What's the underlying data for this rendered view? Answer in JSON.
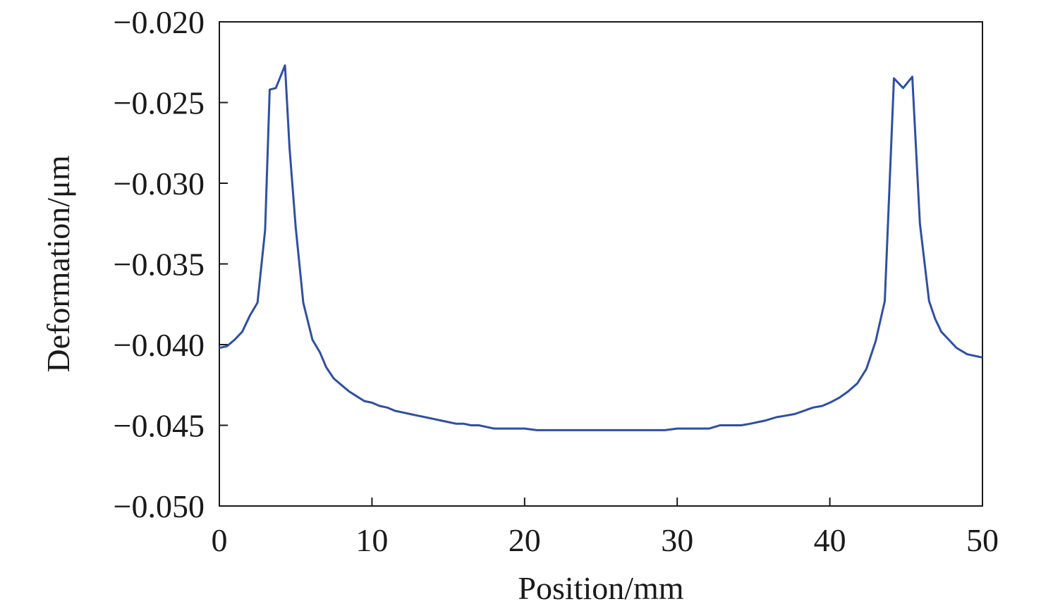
{
  "chart_data": {
    "type": "line",
    "title": "",
    "xlabel": "Position/mm",
    "ylabel": "Deformation/μm",
    "xlim": [
      0,
      50
    ],
    "ylim": [
      -0.05,
      -0.02
    ],
    "xticks": [
      0,
      10,
      20,
      30,
      40,
      50
    ],
    "xtick_labels": [
      "0",
      "10",
      "20",
      "30",
      "40",
      "50"
    ],
    "yticks": [
      -0.05,
      -0.045,
      -0.04,
      -0.035,
      -0.03,
      -0.025,
      -0.02
    ],
    "ytick_labels": [
      "−0.050",
      "−0.045",
      "−0.040",
      "−0.035",
      "−0.030",
      "−0.025",
      "−0.020"
    ],
    "grid": false,
    "legend": "none",
    "series": [
      {
        "color": "#2e4fa3",
        "x": [
          0,
          0.5,
          1,
          1.5,
          2,
          2.5,
          3,
          3.3,
          3.7,
          4.3,
          4.6,
          5,
          5.5,
          6.1,
          6.6,
          7,
          7.5,
          8,
          8.5,
          9,
          9.5,
          10,
          10.5,
          11,
          11.5,
          12,
          12.5,
          13,
          13.5,
          14,
          14.5,
          15,
          15.5,
          16,
          16.5,
          17,
          17.5,
          18,
          19,
          20,
          20.8,
          22,
          23,
          24,
          25,
          26,
          27,
          28,
          29.2,
          30,
          31,
          32.1,
          32.8,
          33.5,
          34.2,
          34.8,
          35.3,
          35.8,
          36.5,
          37.1,
          37.7,
          38.3,
          38.9,
          39.5,
          40,
          40.6,
          41.2,
          41.8,
          42.4,
          43,
          43.6,
          44.2,
          44.8,
          45.4,
          45.9,
          46.5,
          46.9,
          47.3,
          47.8,
          48.3,
          49,
          50
        ],
        "values": [
          -0.0402,
          -0.0401,
          -0.0397,
          -0.0392,
          -0.0382,
          -0.0374,
          -0.0329,
          -0.0242,
          -0.0241,
          -0.0227,
          -0.0278,
          -0.0327,
          -0.0374,
          -0.0397,
          -0.0405,
          -0.0414,
          -0.0421,
          -0.0425,
          -0.0429,
          -0.0432,
          -0.0435,
          -0.0436,
          -0.0438,
          -0.0439,
          -0.0441,
          -0.0442,
          -0.0443,
          -0.0444,
          -0.0445,
          -0.0446,
          -0.0447,
          -0.0448,
          -0.0449,
          -0.0449,
          -0.045,
          -0.045,
          -0.0451,
          -0.0452,
          -0.0452,
          -0.0452,
          -0.0453,
          -0.0453,
          -0.0453,
          -0.0453,
          -0.0453,
          -0.0453,
          -0.0453,
          -0.0453,
          -0.0453,
          -0.0452,
          -0.0452,
          -0.0452,
          -0.045,
          -0.045,
          -0.045,
          -0.0449,
          -0.0448,
          -0.0447,
          -0.0445,
          -0.0444,
          -0.0443,
          -0.0441,
          -0.0439,
          -0.0438,
          -0.0436,
          -0.0433,
          -0.0429,
          -0.0424,
          -0.0415,
          -0.0398,
          -0.0373,
          -0.0235,
          -0.0241,
          -0.0234,
          -0.0325,
          -0.0373,
          -0.0384,
          -0.0392,
          -0.0397,
          -0.0402,
          -0.0406,
          -0.0408
        ]
      }
    ]
  }
}
